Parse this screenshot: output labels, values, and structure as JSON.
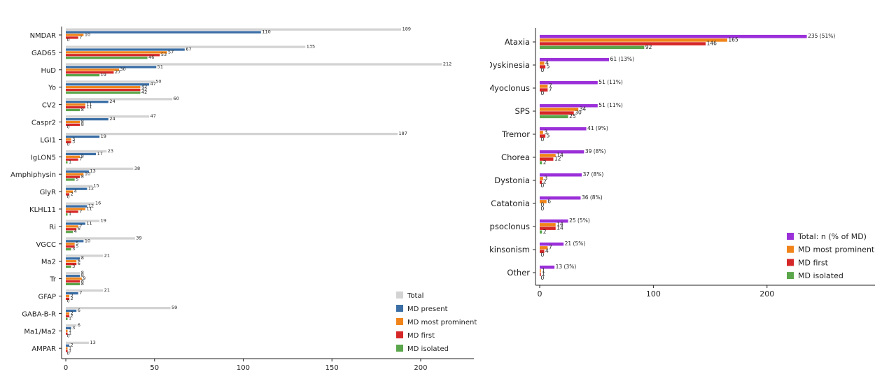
{
  "chart_data": [
    {
      "type": "bar",
      "orientation": "horizontal",
      "categories": [
        "NMDAR",
        "GAD65",
        "HuD",
        "Yo",
        "CV2",
        "Caspr2",
        "LGI1",
        "IgLON5",
        "Amphiphysin",
        "GlyR",
        "KLHL11",
        "Ri",
        "VGCC",
        "Ma2",
        "Tr",
        "GFAP",
        "GABA-B-R",
        "Ma1/Ma2",
        "AMPAR"
      ],
      "series": [
        {
          "name": "Total",
          "color": "#d3d3d3",
          "values": [
            189,
            135,
            212,
            50,
            60,
            47,
            187,
            23,
            38,
            15,
            16,
            19,
            39,
            21,
            8,
            21,
            59,
            6,
            13
          ]
        },
        {
          "name": "MD present",
          "color": "#3a6ea5",
          "values": [
            110,
            67,
            51,
            47,
            24,
            24,
            19,
            17,
            13,
            12,
            12,
            11,
            10,
            8,
            8,
            7,
            6,
            3,
            2
          ]
        },
        {
          "name": "MD most prominent",
          "color": "#f0841a",
          "values": [
            10,
            57,
            30,
            42,
            11,
            8,
            3,
            8,
            10,
            4,
            11,
            7,
            5,
            6,
            9,
            2,
            2,
            1,
            1
          ]
        },
        {
          "name": "MD first",
          "color": "#d62728",
          "values": [
            7,
            53,
            27,
            42,
            11,
            8,
            3,
            7,
            8,
            2,
            7,
            6,
            5,
            6,
            8,
            2,
            2,
            1,
            1
          ]
        },
        {
          "name": "MD isolated",
          "color": "#5aa64a",
          "values": [
            0,
            46,
            19,
            42,
            8,
            0,
            0,
            1,
            5,
            0,
            1,
            4,
            3,
            3,
            8,
            0,
            1,
            0,
            0
          ]
        }
      ],
      "value_labels": [
        [
          "189",
          "135",
          "212",
          "50",
          "60",
          "47",
          "187",
          "23",
          "38",
          "15",
          "16",
          "19",
          "39",
          "21",
          "8",
          "21",
          "59",
          "6",
          "13"
        ],
        [
          "110",
          "67",
          "51",
          "47",
          "24",
          "24",
          "19",
          "17",
          "13",
          "12",
          "12",
          "11",
          "10",
          "8",
          "8",
          "7",
          "6",
          "3",
          "2"
        ],
        [
          "10",
          "57",
          "30",
          "42",
          "11",
          "8",
          "3",
          "8",
          "10",
          "4",
          "11",
          "7",
          "5",
          "6",
          "9",
          "2",
          "2",
          "1",
          "1"
        ],
        [
          "7",
          "53",
          "27",
          "42",
          "11",
          "8",
          "3",
          "7",
          "8",
          "2",
          "7",
          "6",
          "5",
          "6",
          "8",
          "2",
          "2",
          "1",
          "1"
        ],
        [
          "0",
          "46",
          "19",
          "42",
          "8",
          "0",
          "0",
          "1",
          "5",
          "0",
          "1",
          "4",
          "3",
          "3",
          "8",
          "0",
          "1",
          "0",
          "0"
        ]
      ],
      "xticks": [
        0,
        50,
        100,
        150,
        200
      ],
      "xlim": [
        0,
        230
      ],
      "legend_position": "bottom-right",
      "grid": false
    },
    {
      "type": "bar",
      "orientation": "horizontal",
      "categories": [
        "Ataxia",
        "Dyskinesia",
        "Myoclonus",
        "SPS",
        "Tremor",
        "Chorea",
        "Dystonia",
        "Catatonia",
        "Opsoclonus",
        "Parkinsonism",
        "Other"
      ],
      "series": [
        {
          "name": "Total: n (% of MD)",
          "color": "#9b30d9",
          "values": [
            235,
            61,
            51,
            51,
            41,
            39,
            37,
            36,
            25,
            21,
            13
          ]
        },
        {
          "name": "MD most prominent",
          "color": "#f0841a",
          "values": [
            165,
            4,
            7,
            34,
            3,
            14,
            3,
            6,
            14,
            7,
            1
          ]
        },
        {
          "name": "MD first",
          "color": "#d62728",
          "values": [
            146,
            5,
            7,
            30,
            5,
            12,
            2,
            0,
            14,
            4,
            1
          ]
        },
        {
          "name": "MD isolated",
          "color": "#5aa64a",
          "values": [
            92,
            0,
            0,
            25,
            0,
            2,
            0,
            0,
            2,
            0,
            0
          ]
        }
      ],
      "value_labels": [
        [
          "235 (51%)",
          "61 (13%)",
          "51 (11%)",
          "51 (11%)",
          "41 (9%)",
          "39 (8%)",
          "37 (8%)",
          "36 (8%)",
          "25 (5%)",
          "21 (5%)",
          "13 (3%)"
        ],
        [
          "165",
          "4",
          "7",
          "34",
          "3",
          "14",
          "3",
          "6",
          "14",
          "7",
          "1"
        ],
        [
          "146",
          "5",
          "7",
          "30",
          "5",
          "12",
          "2",
          "0",
          "14",
          "4",
          "1"
        ],
        [
          "92",
          "0",
          "0",
          "25",
          "0",
          "2",
          "0",
          "0",
          "2",
          "0",
          "0"
        ]
      ],
      "xticks": [
        0,
        100,
        200
      ],
      "xlim": [
        0,
        295
      ],
      "legend_position": "bottom-right",
      "grid": false
    }
  ]
}
